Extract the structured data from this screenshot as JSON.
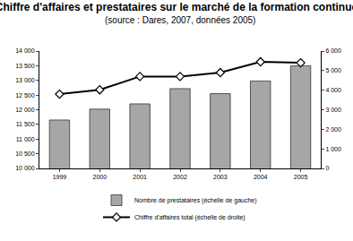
{
  "chart_data": {
    "type": "bar",
    "title": "Chiffre d'affaires et prestataires sur le marché de la formation continue",
    "subtitle": "(source : Dares, 2007, données 2005)",
    "categories": [
      "1999",
      "2000",
      "2001",
      "2002",
      "2003",
      "2004",
      "2005"
    ],
    "series": [
      {
        "name": "Nombre de prestataires (échelle de gauche)",
        "type": "bar",
        "color": "#a6a6a6",
        "values": [
          11650,
          12020,
          12200,
          12720,
          12550,
          12980,
          13500
        ]
      },
      {
        "name": "Chiffre d'affaires total (échelle de droite)",
        "type": "line",
        "axis": "y2",
        "color": "#000000",
        "marker": "diamond",
        "values": [
          3800,
          4020,
          4700,
          4700,
          4900,
          5450,
          5400
        ]
      }
    ],
    "ylim": [
      10000,
      14000
    ],
    "yticks": [
      {
        "value": 10000,
        "label": "10 000"
      },
      {
        "value": 10500,
        "label": "10 500"
      },
      {
        "value": 11000,
        "label": "11 000"
      },
      {
        "value": 11500,
        "label": "11 500"
      },
      {
        "value": 12000,
        "label": "12 000"
      },
      {
        "value": 12500,
        "label": "12 500"
      },
      {
        "value": 13000,
        "label": "13 000"
      },
      {
        "value": 13500,
        "label": "13 500"
      },
      {
        "value": 14000,
        "label": "14 000"
      }
    ],
    "y2lim": [
      0,
      6000
    ],
    "y2ticks": [
      0,
      {
        "value": 1000,
        "label": "1 000"
      },
      {
        "value": 2000,
        "label": "2 000"
      },
      {
        "value": 3000,
        "label": "3 000"
      },
      {
        "value": 4000,
        "label": "4 000"
      },
      {
        "value": 5000,
        "label": "5 000"
      },
      {
        "value": 6000,
        "label": "6 000"
      }
    ],
    "grid": false,
    "legend": "bottom"
  }
}
